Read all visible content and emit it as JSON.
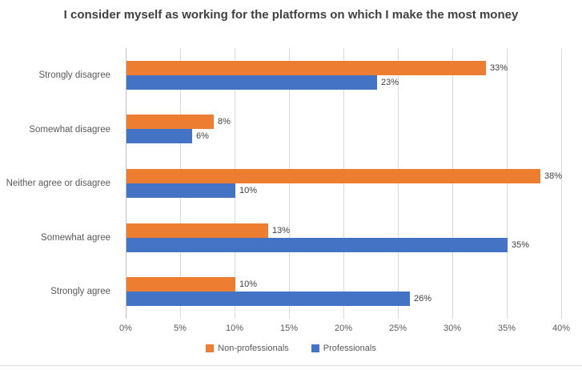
{
  "chart_data": {
    "type": "bar",
    "orientation": "horizontal",
    "title": "I consider myself as working for the platforms on which I make the most money",
    "categories": [
      "Strongly disagree",
      "Somewhat disagree",
      "Neither agree or disagree",
      "Somewhat agree",
      "Strongly agree"
    ],
    "series": [
      {
        "name": "Non-professionals",
        "color": "#ED7D31",
        "values": [
          33,
          8,
          38,
          13,
          10
        ]
      },
      {
        "name": "Professionals",
        "color": "#4472C4",
        "values": [
          23,
          6,
          10,
          35,
          26
        ]
      }
    ],
    "data_label_suffix": "%",
    "x_axis": {
      "min": 0,
      "max": 40,
      "tick_step": 5,
      "tick_labels": [
        "0%",
        "5%",
        "10%",
        "15%",
        "20%",
        "25%",
        "30%",
        "35%",
        "40%"
      ]
    },
    "legend_position": "bottom-center",
    "grid": true,
    "style_colors": {
      "gridline": "#D9D9D9",
      "axis_line": "#BFBFBF",
      "axis_text": "#595959",
      "title_text": "#404040",
      "data_label_text": "#404040"
    }
  }
}
